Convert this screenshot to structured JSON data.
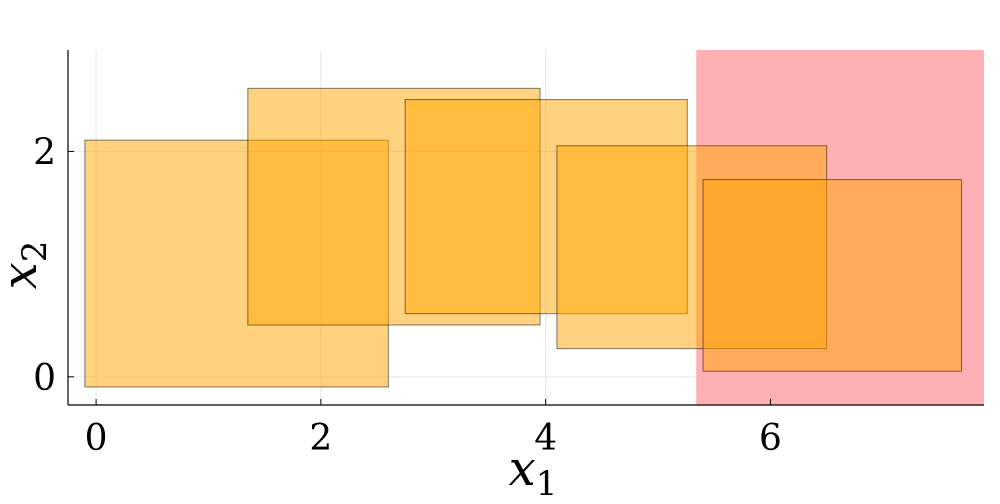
{
  "chart_data": {
    "type": "rectangles",
    "xlabel": "x",
    "xlabel_sub": "1",
    "ylabel": "x",
    "ylabel_sub": "2",
    "xlim": [
      -0.25,
      7.9
    ],
    "ylim": [
      -0.25,
      2.9
    ],
    "xticks": [
      0,
      2,
      4,
      6
    ],
    "yticks": [
      0,
      2
    ],
    "grid": true,
    "region": {
      "x": [
        5.34,
        7.9
      ],
      "y": [
        -0.25,
        2.9
      ],
      "color": "#ffb0b5"
    },
    "boxes": [
      {
        "x": [
          -0.1,
          2.6
        ],
        "y": [
          -0.09,
          2.1
        ]
      },
      {
        "x": [
          1.35,
          3.95
        ],
        "y": [
          0.46,
          2.56
        ]
      },
      {
        "x": [
          2.75,
          5.26
        ],
        "y": [
          0.56,
          2.46
        ]
      },
      {
        "x": [
          4.1,
          6.5
        ],
        "y": [
          0.25,
          2.05
        ]
      },
      {
        "x": [
          5.4,
          7.7
        ],
        "y": [
          0.05,
          1.75
        ]
      }
    ],
    "box_color": "#ffa600",
    "box_opacity": 0.5
  }
}
